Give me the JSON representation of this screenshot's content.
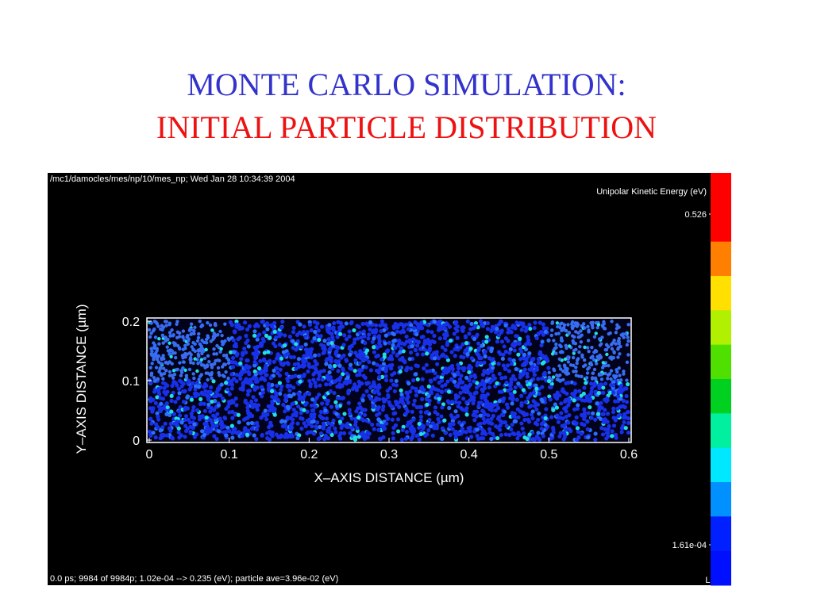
{
  "title": {
    "line1": "MONTE CARLO SIMULATION:",
    "line2": "INITIAL PARTICLE DISTRIBUTION"
  },
  "figure": {
    "header": "/mc1/damocles/mes/np/10/mes_np; Wed Jan 28 10:34:39 2004",
    "footer": "0.0 ps; 9984 of 9984p; 1.02e-04 --> 0.235 (eV); particle ave=3.96e-02 (eV)",
    "x_label": "X–AXIS DISTANCE  (µm)",
    "y_label": "Y–AXIS DISTANCE  (µm)",
    "xlim": [
      0,
      0.6
    ],
    "ylim": [
      0,
      0.2
    ],
    "xticks": [
      0,
      0.1,
      0.2,
      0.3,
      0.4,
      0.5,
      0.6
    ],
    "yticks": [
      0,
      0.1,
      0.2
    ],
    "colorbar": {
      "title": "Unipolar Kinetic Energy  (eV)",
      "max_label": "0.526",
      "min_label": "1.61e-04",
      "scale": "Linear",
      "colors": [
        "#ff0000",
        "#ff0000",
        "#ff8000",
        "#ffe000",
        "#b0f000",
        "#50e000",
        "#00d020",
        "#00f0a0",
        "#00e8ff",
        "#0090ff",
        "#0020ff",
        "#0010ff"
      ]
    }
  }
}
